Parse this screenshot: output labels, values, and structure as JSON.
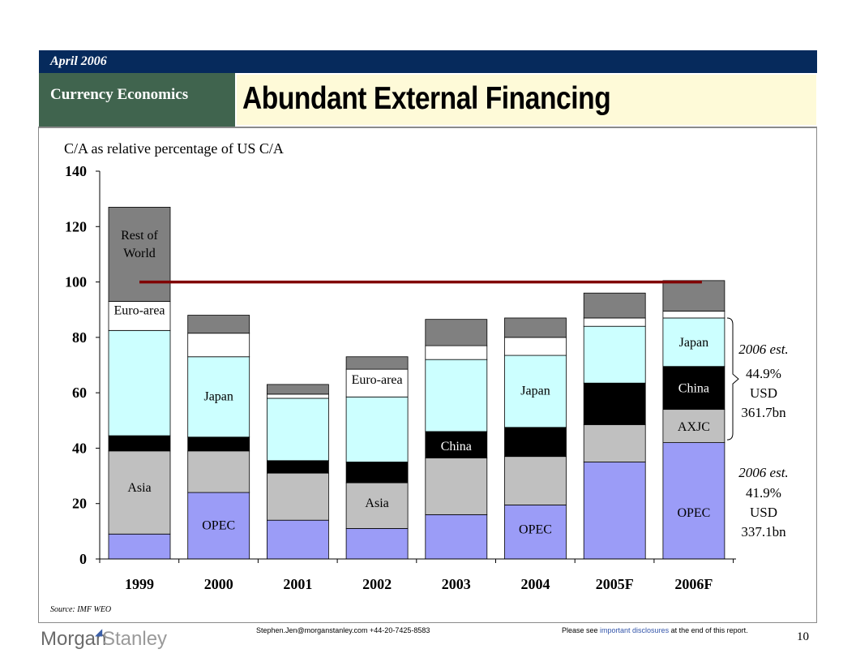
{
  "header": {
    "date": "April 2006",
    "section": "Currency Economics",
    "title": "Abundant External Financing"
  },
  "colors": {
    "opec": "#9b9cf7",
    "asia": "#c0c0c0",
    "china": "#000000",
    "japan": "#ccffff",
    "euro_area": "#ffffff",
    "rest_of_world": "#808080",
    "reference_line": "#800000"
  },
  "chart_data": {
    "type": "bar",
    "stacked": true,
    "title": "C/A as relative percentage of US C/A",
    "xlabel": "",
    "ylabel": "",
    "ylim": [
      0,
      140
    ],
    "yticks": [
      "0",
      "20",
      "40",
      "60",
      "80",
      "100",
      "120",
      "140"
    ],
    "categories": [
      "1999",
      "2000",
      "2001",
      "2002",
      "2003",
      "2004",
      "2005F",
      "2006F"
    ],
    "series": [
      {
        "key": "opec",
        "values": [
          9,
          24,
          14,
          11,
          16,
          19.5,
          35,
          42
        ]
      },
      {
        "key": "asia",
        "values": [
          30,
          15,
          17,
          16.5,
          20.5,
          17.5,
          13.5,
          12
        ]
      },
      {
        "key": "china",
        "values": [
          5.5,
          5,
          4.5,
          7.5,
          9.5,
          10.5,
          15,
          15.5
        ]
      },
      {
        "key": "japan",
        "values": [
          38,
          29,
          22.5,
          23.5,
          26,
          26,
          20.5,
          17.5
        ]
      },
      {
        "key": "euro_area",
        "values": [
          10.5,
          8.5,
          1.5,
          10,
          5,
          6.5,
          3,
          2.5
        ]
      },
      {
        "key": "rest_of_world",
        "values": [
          34,
          6.5,
          3.5,
          4.5,
          9.5,
          7,
          9,
          11
        ]
      }
    ],
    "reference_line": {
      "value": 100
    },
    "bar_labels": [
      {
        "text": "Rest of World",
        "bar": 0,
        "y": 114
      },
      {
        "text": "Euro-area",
        "bar": 0,
        "y": 90
      },
      {
        "text": "Asia",
        "bar": 0,
        "y": 26
      },
      {
        "text": "Japan",
        "bar": 1,
        "y": 59
      },
      {
        "text": "OPEC",
        "bar": 1,
        "y": 12.5
      },
      {
        "text": "Euro-area",
        "bar": 3,
        "y": 65
      },
      {
        "text": "Asia",
        "bar": 3,
        "y": 20.5
      },
      {
        "text": "China",
        "bar": 4,
        "y": 41
      },
      {
        "text": "Japan",
        "bar": 5,
        "y": 61
      },
      {
        "text": "OPEC",
        "bar": 5,
        "y": 11
      },
      {
        "text": "Japan",
        "bar": 7,
        "y": 78.5
      },
      {
        "text": "China",
        "bar": 7,
        "y": 62
      },
      {
        "text": "AXJC",
        "bar": 7,
        "y": 48
      },
      {
        "text": "OPEC",
        "bar": 7,
        "y": 17
      }
    ],
    "annotations": [
      {
        "lines": [
          "2006 est.",
          "44.9%",
          "USD",
          "361.7bn"
        ],
        "brace_range": [
          43,
          87
        ]
      },
      {
        "lines": [
          "2006 est.",
          "41.9%",
          "USD",
          "337.1bn"
        ],
        "brace_range": null
      }
    ]
  },
  "footer": {
    "source": "Source: IMF WEO",
    "contact": "Stephen.Jen@morganstanley.com +44-20-7425-8583",
    "disclosure_pre": "Please see ",
    "disclosure_link": "important disclosures",
    "disclosure_post": " at the end of this report.",
    "page": "10",
    "logo_word1": "Morgan",
    "logo_word2": "Stanley"
  }
}
